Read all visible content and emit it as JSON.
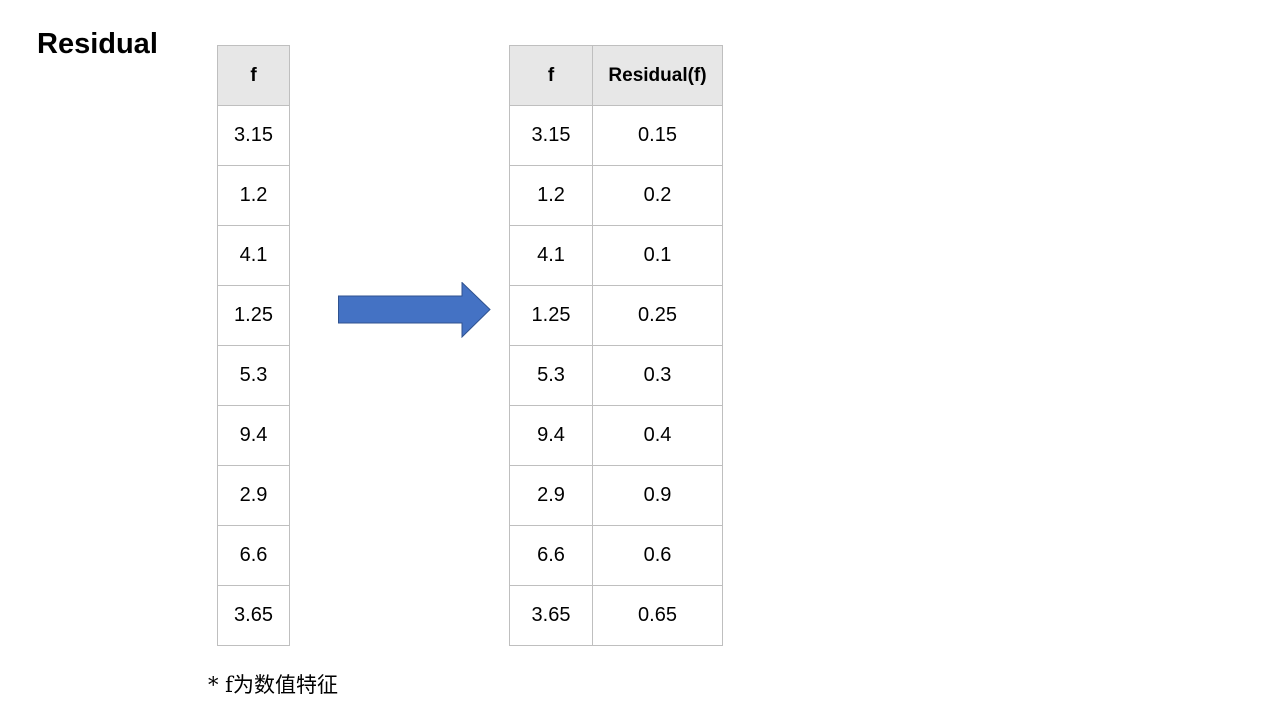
{
  "title": "Residual",
  "left_table": {
    "header": "f",
    "rows": [
      "3.15",
      "1.2",
      "4.1",
      "1.25",
      "5.3",
      "9.4",
      "2.9",
      "6.6",
      "3.65"
    ]
  },
  "right_table": {
    "headers": [
      "f",
      "Residual(f)"
    ],
    "rows": [
      [
        "3.15",
        "0.15"
      ],
      [
        "1.2",
        "0.2"
      ],
      [
        "4.1",
        "0.1"
      ],
      [
        "1.25",
        "0.25"
      ],
      [
        "5.3",
        "0.3"
      ],
      [
        "9.4",
        "0.4"
      ],
      [
        "2.9",
        "0.9"
      ],
      [
        "6.6",
        "0.6"
      ],
      [
        "3.65",
        "0.65"
      ]
    ]
  },
  "arrow": {
    "icon": "right-arrow-icon",
    "color": "#4472c4",
    "border_color": "#2f528f"
  },
  "note": "*  f为数值特征"
}
